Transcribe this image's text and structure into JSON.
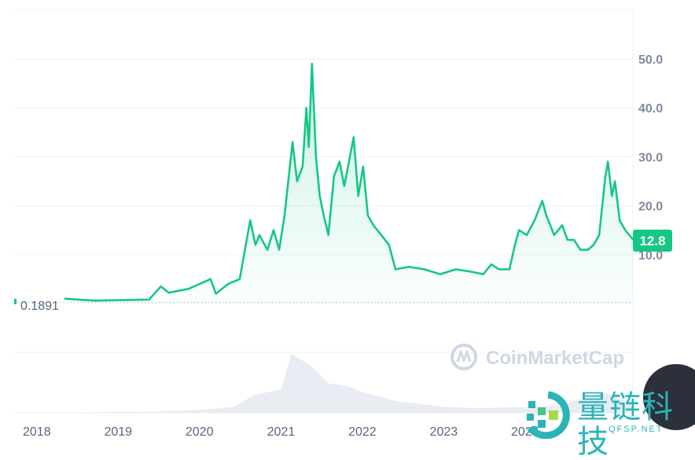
{
  "chart_data": {
    "type": "area",
    "title": "",
    "xlabel": "",
    "ylabel": "",
    "y_axis_position": "right",
    "ylim": [
      0,
      58
    ],
    "yticks": [
      "10.0",
      "20.0",
      "30.0",
      "40.0",
      "50.0"
    ],
    "ytick_values": [
      10,
      20,
      30,
      40,
      50
    ],
    "xticks": [
      "2018",
      "2019",
      "2020",
      "2021",
      "2022",
      "2023",
      "2024"
    ],
    "xtick_dates": [
      "2018-01-01",
      "2019-01-01",
      "2020-01-01",
      "2021-01-01",
      "2022-01-01",
      "2023-01-01",
      "2024-01-01"
    ],
    "grid": true,
    "line_color": "#16c784",
    "baseline": {
      "value": 0.1891,
      "label": "0.1891",
      "style": "dotted"
    },
    "current_price": {
      "value": 12.8,
      "label": "12.8",
      "color": "#16c784"
    },
    "series": [
      {
        "x": [
          "2018-05-04",
          "2018-09-15",
          "2019-02-03",
          "2019-05-19",
          "2019-07-11",
          "2019-08-15",
          "2019-11-13",
          "2020-02-19",
          "2020-03-14",
          "2020-05-08",
          "2020-06-29",
          "2020-08-15",
          "2020-09-08",
          "2020-09-25",
          "2020-10-31",
          "2020-11-28",
          "2020-12-23",
          "2021-01-16",
          "2021-02-21",
          "2021-03-13",
          "2021-04-07",
          "2021-04-24",
          "2021-05-05",
          "2021-05-19",
          "2021-06-06",
          "2021-06-23",
          "2021-07-11",
          "2021-08-01",
          "2021-08-26",
          "2021-09-20",
          "2021-10-11",
          "2021-10-28",
          "2021-11-22",
          "2021-12-13",
          "2022-01-04",
          "2022-01-25",
          "2022-02-19",
          "2022-03-26",
          "2022-04-30",
          "2022-05-29",
          "2022-07-28",
          "2022-10-06",
          "2022-12-16",
          "2023-02-24",
          "2023-05-05",
          "2023-06-27",
          "2023-08-02",
          "2023-09-06",
          "2023-10-22",
          "2023-11-16",
          "2023-12-04",
          "2024-01-08",
          "2024-02-12",
          "2024-03-18",
          "2024-04-05",
          "2024-04-23",
          "2024-05-10",
          "2024-06-15",
          "2024-07-09",
          "2024-08-07",
          "2024-09-04",
          "2024-10-09",
          "2024-11-03",
          "2024-11-28",
          "2024-12-26",
          "2025-01-06",
          "2025-01-24",
          "2025-02-07",
          "2025-02-28",
          "2025-03-25",
          "2025-04-30"
        ],
        "y": [
          1.0,
          0.6,
          0.7,
          0.8,
          3.5,
          2.2,
          3.0,
          5.0,
          2.0,
          4.0,
          5.0,
          17,
          12,
          14,
          11,
          15,
          11,
          18,
          33,
          25,
          28,
          40,
          32,
          49,
          30,
          22,
          18,
          14,
          26,
          29,
          24,
          28,
          34,
          22,
          28,
          18,
          16,
          14,
          12,
          7,
          7.5,
          7,
          6,
          7,
          6.5,
          6,
          8,
          7,
          7,
          12,
          15,
          14,
          17,
          21,
          18,
          16,
          14,
          16,
          13,
          13,
          11,
          11,
          12,
          14,
          26,
          29,
          22,
          25,
          17,
          15,
          13
        ]
      }
    ],
    "volume_relative": {
      "x": [
        "2018-01-01",
        "2019-06-01",
        "2020-01-01",
        "2020-06-01",
        "2020-09-01",
        "2021-01-01",
        "2021-02-15",
        "2021-05-15",
        "2021-08-01",
        "2021-11-01",
        "2022-01-01",
        "2022-06-01",
        "2023-01-01",
        "2023-06-01",
        "2024-01-01",
        "2024-06-01",
        "2024-12-15",
        "2025-04-30"
      ],
      "y": [
        0.0,
        0.02,
        0.05,
        0.1,
        0.3,
        0.4,
        1.0,
        0.8,
        0.5,
        0.45,
        0.35,
        0.2,
        0.1,
        0.08,
        0.1,
        0.12,
        0.35,
        0.15
      ]
    }
  },
  "watermarks": {
    "coinmarketcap": "CoinMarketCap",
    "qfsp_title": "量链科技",
    "qfsp_sub": "QFSP.NET"
  }
}
